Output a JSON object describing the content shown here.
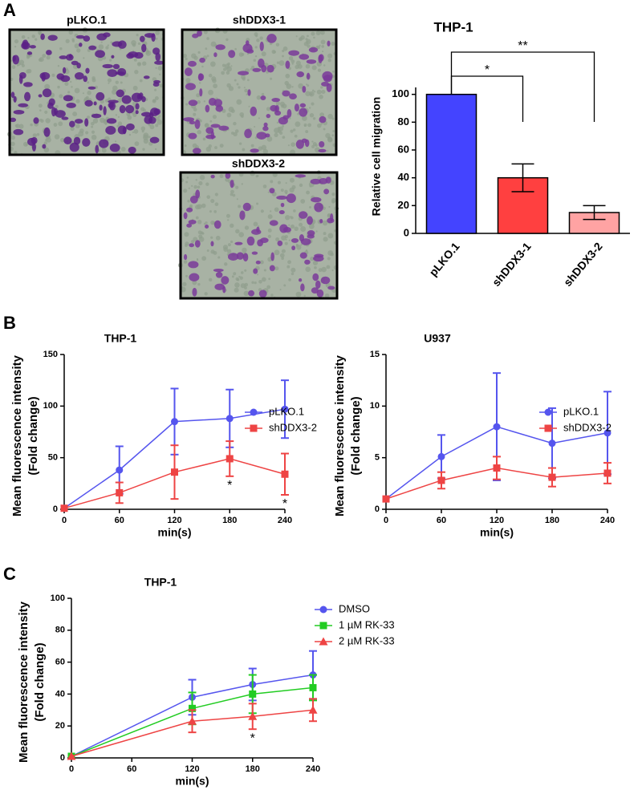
{
  "panel_labels": [
    "A",
    "B",
    "C"
  ],
  "images": [
    {
      "label": "pLKO.1"
    },
    {
      "label": "shDDX3-1"
    },
    {
      "label": "shDDX3-2"
    }
  ],
  "chart_data": [
    {
      "type": "bar",
      "title": "THP-1",
      "ylabel": "Relative cell migration",
      "categories": [
        "pLKO.1",
        "shDDX3-1",
        "shDDX3-2"
      ],
      "values": [
        100,
        40,
        15
      ],
      "errors": [
        0,
        10,
        5
      ],
      "colors": [
        "#4444ff",
        "#ff4040",
        "#ffa3a3"
      ],
      "ylim": [
        0,
        105
      ],
      "yticks": [
        0,
        20,
        40,
        60,
        80,
        100
      ],
      "significance": [
        "*",
        "**"
      ]
    },
    {
      "type": "line",
      "title": "THP-1",
      "ylabel": [
        "Mean fluorescence intensity",
        "(Fold change)"
      ],
      "xlabel": "min(s)",
      "x": [
        0,
        60,
        120,
        180,
        240
      ],
      "xlim": [
        0,
        240
      ],
      "xticks": [
        0,
        60,
        120,
        180,
        240
      ],
      "ylim": [
        0,
        150
      ],
      "yticks": [
        0,
        50,
        100,
        150
      ],
      "series": [
        {
          "name": "pLKO.1",
          "color": "#5555ee",
          "marker": "circle",
          "values": [
            1,
            38,
            85,
            88,
            97
          ],
          "errors": [
            0,
            23,
            32,
            28,
            28
          ]
        },
        {
          "name": "shDDX3-2",
          "color": "#ee4444",
          "marker": "square",
          "values": [
            1,
            16,
            36,
            49,
            34
          ],
          "errors": [
            0,
            10,
            26,
            17,
            20
          ]
        }
      ],
      "annotations": [
        {
          "text": "*",
          "x": 180
        },
        {
          "text": "*",
          "x": 240
        }
      ]
    },
    {
      "type": "line",
      "title": "U937",
      "ylabel": [
        "Mean fluorescence intensity",
        "(Fold change)"
      ],
      "xlabel": "min(s)",
      "x": [
        0,
        60,
        120,
        180,
        240
      ],
      "xlim": [
        0,
        240
      ],
      "xticks": [
        0,
        60,
        120,
        180,
        240
      ],
      "ylim": [
        0,
        15
      ],
      "yticks": [
        0,
        5,
        10,
        15
      ],
      "series": [
        {
          "name": "pLKO.1",
          "color": "#5555ee",
          "marker": "circle",
          "values": [
            1,
            5.1,
            8,
            6.4,
            7.4
          ],
          "errors": [
            0,
            2.1,
            5.2,
            3.4,
            4
          ]
        },
        {
          "name": "shDDX3-2",
          "color": "#ee4444",
          "marker": "square",
          "values": [
            1,
            2.8,
            4,
            3.1,
            3.5
          ],
          "errors": [
            0,
            0.8,
            1.1,
            0.9,
            1
          ]
        }
      ],
      "annotations": []
    },
    {
      "type": "line",
      "title": "THP-1",
      "ylabel": [
        "Mean fluorescence intensity",
        "(Fold change)"
      ],
      "xlabel": "min(s)",
      "x": [
        0,
        120,
        180,
        240
      ],
      "xlim": [
        0,
        240
      ],
      "xticks": [
        0,
        60,
        120,
        180,
        240
      ],
      "ylim": [
        0,
        100
      ],
      "yticks": [
        0,
        20,
        40,
        60,
        80,
        100
      ],
      "series": [
        {
          "name": "DMSO",
          "color": "#5555ee",
          "marker": "circle",
          "values": [
            1,
            38,
            46,
            52
          ],
          "errors": [
            0,
            11,
            10,
            15
          ]
        },
        {
          "name": "1 µM RK-33",
          "color": "#22cc22",
          "marker": "square",
          "values": [
            1,
            31,
            40,
            44
          ],
          "errors": [
            0,
            10,
            12,
            8
          ]
        },
        {
          "name": "2 µM RK-33",
          "color": "#ee4444",
          "marker": "triangle",
          "values": [
            1,
            23,
            26,
            30
          ],
          "errors": [
            0,
            7,
            8,
            7
          ]
        }
      ],
      "annotations": [
        {
          "text": "*",
          "x": 180
        }
      ]
    }
  ]
}
